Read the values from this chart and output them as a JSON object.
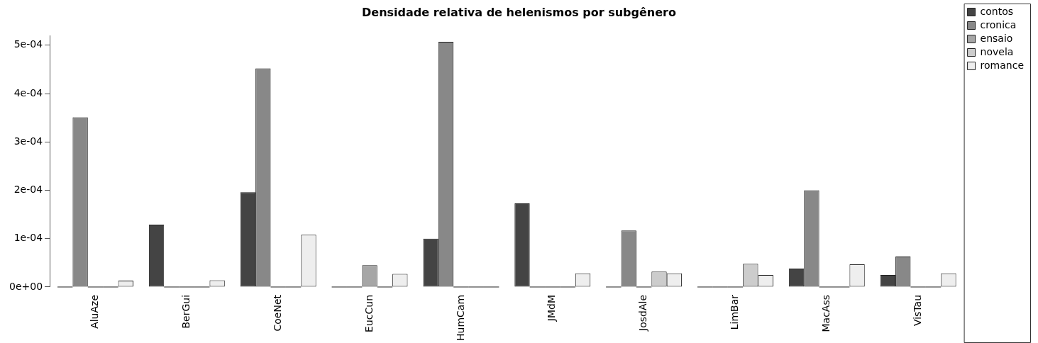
{
  "chart_data": {
    "type": "bar",
    "title": "Densidade relativa de helenismos por subgênero",
    "categories": [
      "AluAze",
      "BerGui",
      "CoeNet",
      "EucCun",
      "HumCam",
      "JMdM",
      "JosdAle",
      "LimBar",
      "MacAss",
      "VisTau"
    ],
    "series": [
      {
        "name": "contos",
        "color": "#444444",
        "values": [
          0,
          0.000129,
          0.000196,
          0,
          0.0001,
          0.000173,
          0,
          0,
          3.8e-05,
          2.5e-05
        ]
      },
      {
        "name": "cronica",
        "color": "#888888",
        "values": [
          0.000351,
          0,
          0.000452,
          0,
          0.000507,
          0,
          0.000117,
          0,
          0.0002,
          6.3e-05
        ]
      },
      {
        "name": "ensaio",
        "color": "#a6a6a6",
        "values": [
          0,
          0,
          0,
          4.5e-05,
          0,
          0,
          0,
          0,
          0,
          0
        ]
      },
      {
        "name": "novela",
        "color": "#cccccc",
        "values": [
          0,
          0,
          0,
          0,
          0,
          0,
          3.2e-05,
          4.8e-05,
          0,
          0
        ]
      },
      {
        "name": "romance",
        "color": "#eeeeee",
        "values": [
          1.3e-05,
          1.4e-05,
          0.000108,
          2.7e-05,
          0,
          2.8e-05,
          2.8e-05,
          2.5e-05,
          4.7e-05,
          2.8e-05
        ]
      }
    ],
    "ylim": [
      0,
      0.00052
    ],
    "yticks": [
      {
        "value": 0,
        "label": "0e+00"
      },
      {
        "value": 0.0001,
        "label": "1e-04"
      },
      {
        "value": 0.0002,
        "label": "2e-04"
      },
      {
        "value": 0.0003,
        "label": "3e-04"
      },
      {
        "value": 0.0004,
        "label": "4e-04"
      },
      {
        "value": 0.0005,
        "label": "5e-04"
      }
    ],
    "grid": false,
    "legend": "top right"
  }
}
